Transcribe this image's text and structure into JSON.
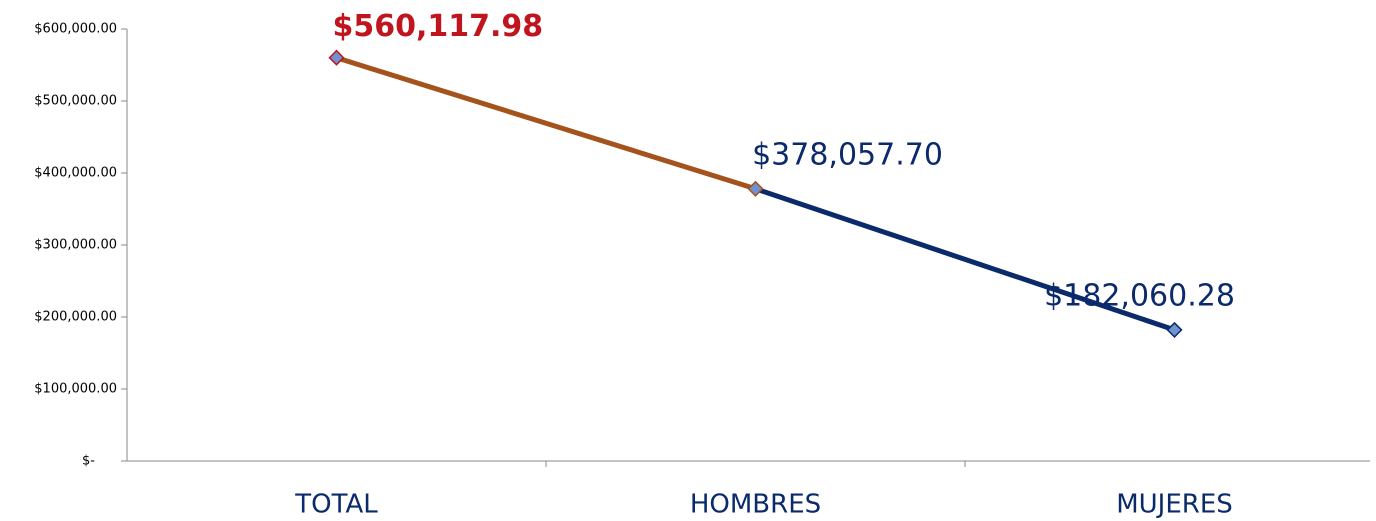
{
  "chart_data": {
    "type": "line",
    "categories": [
      "TOTAL",
      "HOMBRES",
      "MUJERES"
    ],
    "series": [
      {
        "values": [
          560117.98,
          378057.7,
          182060.28
        ],
        "value_labels": [
          "$560,117.98",
          "$378,057.70",
          "$182,060.28"
        ],
        "color": "#0b2a6b",
        "segment_colors": [
          "#a4531c",
          "#0b2a6b"
        ],
        "marker_fills": [
          "#6f93cf",
          "#6f93cf",
          "#6f93cf"
        ],
        "marker_strokes": [
          "#c0141e",
          "#a4531c",
          "#0b2a6b"
        ],
        "label_colors": [
          "#c0141e",
          "#0b2a6b",
          "#0b2a6b"
        ],
        "label_bold": [
          true,
          false,
          false
        ]
      }
    ],
    "ylim": [
      0,
      600000
    ],
    "yticks": [
      {
        "value": 0,
        "label": "$-"
      },
      {
        "value": 100000,
        "label": "$100,000.00"
      },
      {
        "value": 200000,
        "label": "$200,000.00"
      },
      {
        "value": 300000,
        "label": "$300,000.00"
      },
      {
        "value": 400000,
        "label": "$400,000.00"
      },
      {
        "value": 500000,
        "label": "$500,000.00"
      },
      {
        "value": 600000,
        "label": "$600,000.00"
      }
    ],
    "grid": false
  }
}
